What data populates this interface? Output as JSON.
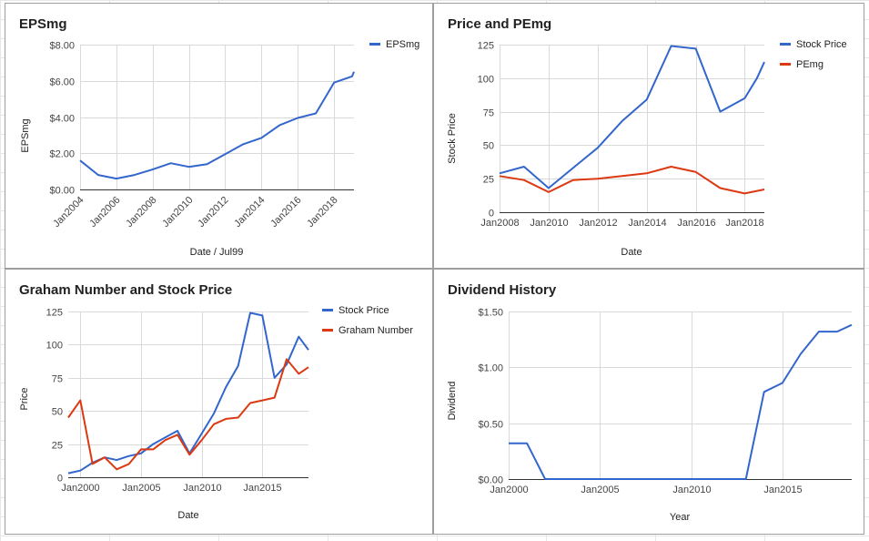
{
  "charts": {
    "eps": {
      "title": "EPSmg",
      "xlabel": "Date / Jul99",
      "ylabel": "EPSmg",
      "y_ticks": [
        "$0.00",
        "$2.00",
        "$4.00",
        "$6.00",
        "$8.00"
      ],
      "x_ticks": [
        "Jan2004",
        "Jan2006",
        "Jan2008",
        "Jan2010",
        "Jan2012",
        "Jan2014",
        "Jan2016",
        "Jan2018"
      ],
      "legend": [
        "EPSmg"
      ]
    },
    "price_pe": {
      "title": "Price and PEmg",
      "xlabel": "Date",
      "ylabel": "Stock Price",
      "y_ticks": [
        "0",
        "25",
        "50",
        "75",
        "100",
        "125"
      ],
      "x_ticks": [
        "Jan2008",
        "Jan2010",
        "Jan2012",
        "Jan2014",
        "Jan2016",
        "Jan2018"
      ],
      "legend": [
        "Stock Price",
        "PEmg"
      ]
    },
    "graham": {
      "title": "Graham Number and Stock Price",
      "xlabel": "Date",
      "ylabel": "Price",
      "y_ticks": [
        "0",
        "25",
        "50",
        "75",
        "100",
        "125"
      ],
      "x_ticks": [
        "Jan2000",
        "Jan2005",
        "Jan2010",
        "Jan2015"
      ],
      "legend": [
        "Stock Price",
        "Graham Number"
      ]
    },
    "dividend": {
      "title": "Dividend History",
      "xlabel": "Year",
      "ylabel": "Dividend",
      "y_ticks": [
        "$0.00",
        "$0.50",
        "$1.00",
        "$1.50"
      ],
      "x_ticks": [
        "Jan2000",
        "Jan2005",
        "Jan2010",
        "Jan2015"
      ],
      "legend": []
    }
  },
  "chart_data": [
    {
      "type": "line",
      "title": "EPSmg",
      "xlabel": "Date / Jul99",
      "ylabel": "EPSmg",
      "xlim": [
        2004,
        2019.1
      ],
      "ylim": [
        0,
        8
      ],
      "grid": true,
      "legend_position": "right",
      "colors": {
        "EPSmg": "#3366cc"
      },
      "series": [
        {
          "name": "EPSmg",
          "x": [
            2004,
            2005,
            2006,
            2007,
            2008,
            2009,
            2010,
            2011,
            2012,
            2013,
            2014,
            2015,
            2016,
            2017,
            2018,
            2019,
            2019.1
          ],
          "values": [
            1.6,
            0.8,
            0.6,
            0.8,
            1.1,
            1.45,
            1.25,
            1.4,
            1.95,
            2.5,
            2.85,
            3.55,
            3.95,
            4.2,
            5.9,
            6.25,
            6.5
          ]
        }
      ]
    },
    {
      "type": "line",
      "title": "Price and PEmg",
      "xlabel": "Date",
      "ylabel": "Stock Price",
      "xlim": [
        2008,
        2018.8
      ],
      "ylim": [
        0,
        125
      ],
      "grid": true,
      "legend_position": "right",
      "colors": {
        "Stock Price": "#3366cc",
        "PEmg": "#dc3912"
      },
      "series": [
        {
          "name": "Stock Price",
          "x": [
            2008,
            2009,
            2010,
            2011,
            2012,
            2013,
            2014,
            2015,
            2016,
            2017,
            2018,
            2018.5,
            2018.8
          ],
          "values": [
            29,
            34,
            18,
            33,
            48,
            68,
            84,
            124,
            122,
            75,
            85,
            100,
            112
          ]
        },
        {
          "name": "PEmg",
          "x": [
            2008,
            2009,
            2010,
            2011,
            2012,
            2013,
            2014,
            2015,
            2016,
            2017,
            2018,
            2018.8
          ],
          "values": [
            27,
            24,
            15,
            24,
            25,
            27,
            29,
            34,
            30,
            18,
            14,
            17
          ]
        }
      ]
    },
    {
      "type": "line",
      "title": "Graham Number and Stock Price",
      "xlabel": "Date",
      "ylabel": "Price",
      "xlim": [
        1999,
        2018.8
      ],
      "ylim": [
        0,
        125
      ],
      "grid": true,
      "legend_position": "right",
      "colors": {
        "Stock Price": "#3366cc",
        "Graham Number": "#dc3912"
      },
      "series": [
        {
          "name": "Stock Price",
          "x": [
            1999,
            2000,
            2001,
            2002,
            2003,
            2004,
            2005,
            2006,
            2007,
            2008,
            2009,
            2010,
            2011,
            2012,
            2013,
            2014,
            2015,
            2016,
            2017,
            2018,
            2018.8
          ],
          "values": [
            3,
            5,
            11,
            15,
            13,
            16,
            18,
            25,
            30,
            35,
            18,
            33,
            48,
            68,
            84,
            124,
            122,
            75,
            85,
            106,
            96
          ]
        },
        {
          "name": "Graham Number",
          "x": [
            1999,
            2000,
            2001,
            2002,
            2003,
            2004,
            2005,
            2006,
            2007,
            2008,
            2009,
            2010,
            2011,
            2012,
            2013,
            2014,
            2015,
            2016,
            2017,
            2018,
            2018.8
          ],
          "values": [
            45,
            58,
            10,
            15,
            6,
            10,
            21,
            21,
            28,
            32,
            17,
            28,
            40,
            44,
            45,
            56,
            58,
            60,
            89,
            78,
            83
          ]
        }
      ]
    },
    {
      "type": "line",
      "title": "Dividend History",
      "xlabel": "Year",
      "ylabel": "Dividend",
      "xlim": [
        2000,
        2018.8
      ],
      "ylim": [
        0,
        1.5
      ],
      "grid": true,
      "legend_position": "none",
      "colors": {
        "Dividend": "#3366cc"
      },
      "series": [
        {
          "x": [
            2000,
            2001,
            2002,
            2003,
            2004,
            2005,
            2006,
            2007,
            2008,
            2009,
            2010,
            2011,
            2012,
            2013,
            2014,
            2015,
            2016,
            2017,
            2018,
            2018.8
          ],
          "values": [
            0.32,
            0.32,
            0,
            0,
            0,
            0,
            0,
            0,
            0,
            0,
            0,
            0,
            0,
            0,
            0.78,
            0.86,
            1.12,
            1.32,
            1.32,
            1.38
          ]
        }
      ]
    }
  ]
}
